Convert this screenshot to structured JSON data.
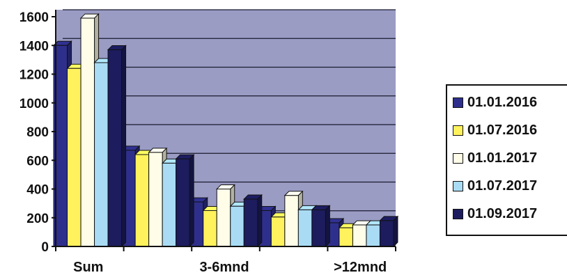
{
  "chart_data": {
    "type": "bar",
    "title": "",
    "xlabel": "",
    "ylabel": "",
    "ylim": [
      0,
      1600
    ],
    "yticks": [
      0,
      200,
      400,
      600,
      800,
      1000,
      1200,
      1400,
      1600
    ],
    "categories": [
      "Sum",
      "",
      "3-6mnd",
      "",
      ">12mnd"
    ],
    "grid": true,
    "legend_position": "right",
    "plot_background": "#9a9cc4",
    "series": [
      {
        "name": "01.01.2016",
        "color": "#2e2f8c",
        "values": [
          1400,
          670,
          310,
          250,
          165
        ]
      },
      {
        "name": "01.07.2016",
        "color": "#fff25c",
        "values": [
          1240,
          640,
          250,
          205,
          130
        ]
      },
      {
        "name": "01.01.2017",
        "color": "#fffde8",
        "values": [
          1590,
          655,
          400,
          355,
          150
        ]
      },
      {
        "name": "01.07.2017",
        "color": "#a9dcf4",
        "values": [
          1280,
          580,
          280,
          255,
          150
        ]
      },
      {
        "name": "01.09.2017",
        "color": "#1c1c5e",
        "values": [
          1370,
          610,
          330,
          255,
          180
        ]
      }
    ]
  }
}
